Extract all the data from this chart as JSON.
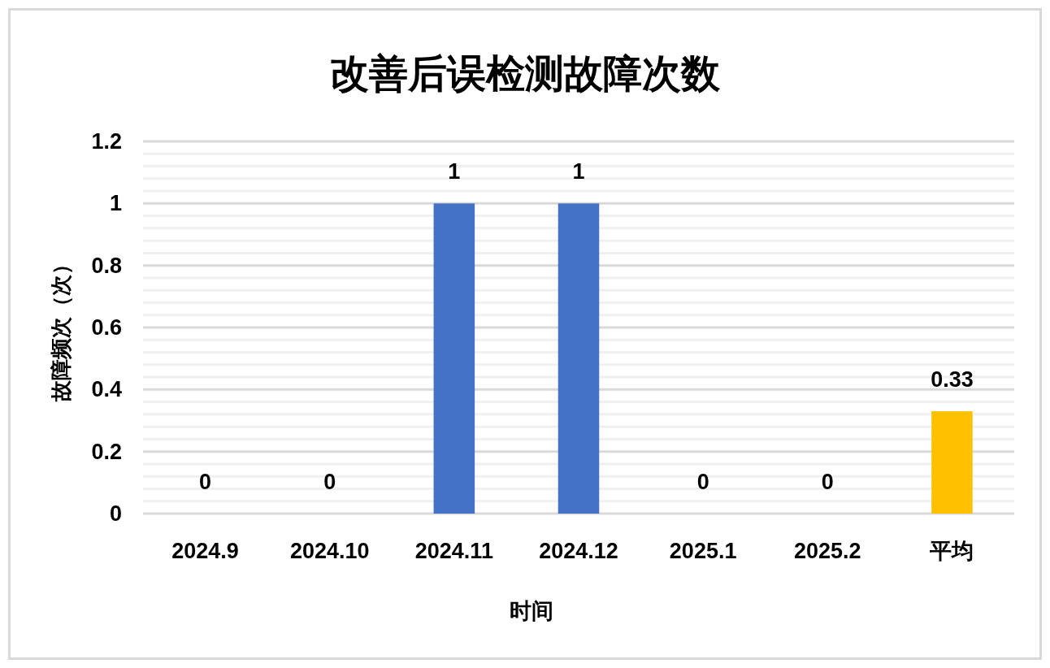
{
  "chart_data": {
    "type": "bar",
    "title": "改善后误检测故障次数",
    "xlabel": "时间",
    "ylabel": "故障频次（次）",
    "categories": [
      "2024.9",
      "2024.10",
      "2024.11",
      "2024.12",
      "2025.1",
      "2025.2",
      "平均"
    ],
    "values": [
      0,
      0,
      1,
      1,
      0,
      0,
      0.33
    ],
    "colors": [
      "#4472c4",
      "#4472c4",
      "#4472c4",
      "#4472c4",
      "#4472c4",
      "#4472c4",
      "#ffc000"
    ],
    "ylim": [
      0,
      1.2
    ],
    "yticks": [
      0,
      {
        "value": 0.04,
        "label": null
      },
      {
        "value": 0.08,
        "label": null
      },
      {
        "value": 0.12,
        "label": null
      },
      {
        "value": 0.16,
        "label": null
      },
      0.2,
      {
        "value": 0.24,
        "label": null
      },
      {
        "value": 0.28,
        "label": null
      },
      {
        "value": 0.32,
        "label": null
      },
      {
        "value": 0.36,
        "label": null
      },
      0.4,
      {
        "value": 0.44,
        "label": null
      },
      {
        "value": 0.48,
        "label": null
      },
      {
        "value": 0.52,
        "label": null
      },
      {
        "value": 0.56,
        "label": null
      },
      0.6,
      {
        "value": 0.64,
        "label": null
      },
      {
        "value": 0.68,
        "label": null
      },
      {
        "value": 0.72,
        "label": null
      },
      {
        "value": 0.76,
        "label": null
      },
      0.8,
      {
        "value": 0.84,
        "label": null
      },
      {
        "value": 0.88,
        "label": null
      },
      {
        "value": 0.92,
        "label": null
      },
      {
        "value": 0.96,
        "label": null
      },
      1,
      {
        "value": 1.04,
        "label": null
      },
      {
        "value": 1.08,
        "label": null
      },
      {
        "value": 1.12,
        "label": null
      },
      {
        "value": 1.16,
        "label": null
      },
      1.2
    ],
    "grid": "y",
    "data_labels": true
  }
}
